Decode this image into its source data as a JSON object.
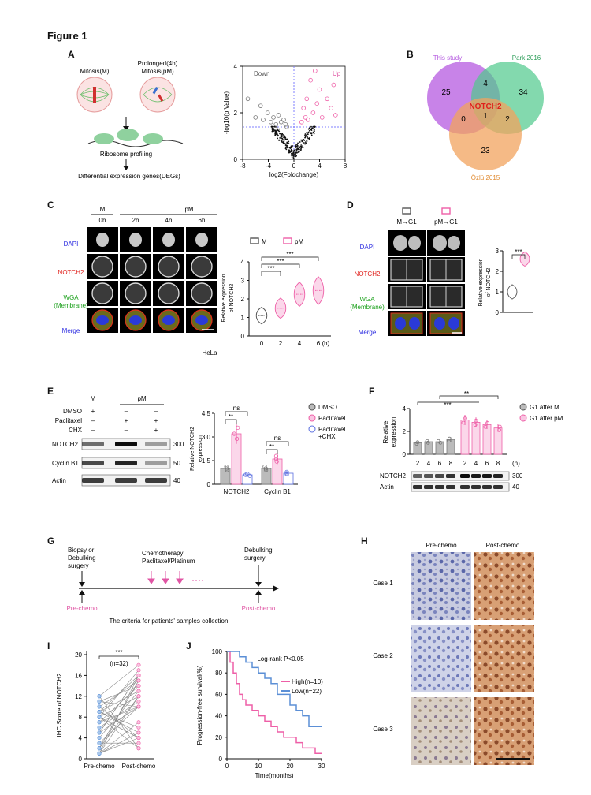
{
  "figure": {
    "title": "Figure 1"
  },
  "panel_labels": [
    "A",
    "B",
    "C",
    "D",
    "E",
    "F",
    "G",
    "H",
    "I",
    "J"
  ],
  "panelA": {
    "mitosis": "Mitosis(M)",
    "prolonged_1": "Prolonged(4h)",
    "prolonged_2": "Mitosis(pM)",
    "ribosome": "Ribosome profiling",
    "degs": "Differential expression genes(DEGs)",
    "volcano": {
      "down": "Down",
      "up": "Up",
      "xlabel": "log2(Foldchange)",
      "ylabel": "-log10(p Value)",
      "xticks": [
        "-8",
        "-4",
        "0",
        "4",
        "8"
      ],
      "yticks": [
        "0",
        "2",
        "4"
      ]
    }
  },
  "panelB": {
    "sets": [
      "This study",
      "Park,2016",
      "Özlü,2015"
    ],
    "counts": {
      "this_only": "25",
      "park_only": "34",
      "ozlu_only": "23",
      "this_park": "4",
      "this_ozlu": "0",
      "park_ozlu": "2",
      "all": "1"
    },
    "center": "NOTCH2",
    "colors": {
      "this": "#b55ae0",
      "park": "#4ec98c",
      "ozlu": "#f2a35e",
      "center_text": "#e0201b"
    }
  },
  "panelC": {
    "groups": [
      "M",
      "pM"
    ],
    "times": [
      "0h",
      "2h",
      "4h",
      "6h"
    ],
    "rows": [
      "DAPI",
      "NOTCH2",
      "WGA",
      "(Membrane)",
      "Merge"
    ],
    "cell": "HeLa",
    "legend": [
      "M",
      "pM"
    ],
    "ylabel_1": "Relative expression",
    "ylabel_2": "of NOTCH2",
    "xticks": [
      "0",
      "2",
      "4",
      "6 (h)"
    ],
    "yticks": [
      "0",
      "1",
      "2",
      "3",
      "4"
    ],
    "sig": [
      "***",
      "***",
      "***"
    ]
  },
  "panelD": {
    "cond": [
      "M→G1",
      "pM→G1"
    ],
    "rows": [
      "DAPI",
      "NOTCH2",
      "WGA",
      "(Membrane)",
      "Merge"
    ],
    "ylabel_1": "Relative expression",
    "ylabel_2": "of NOTCH2",
    "yticks": [
      "0",
      "1",
      "2",
      "3"
    ],
    "sig": "***"
  },
  "panelE": {
    "top": [
      "M",
      "pM"
    ],
    "treat": [
      "DMSO",
      "Paclitaxel",
      "CHX"
    ],
    "marks": [
      [
        "+",
        "–",
        "–"
      ],
      [
        "–",
        "+",
        "+"
      ],
      [
        "–",
        "–",
        "+"
      ]
    ],
    "blots": [
      "NOTCH2",
      "Cyclin B1",
      "Actin"
    ],
    "mw": [
      "300",
      "50",
      "40"
    ],
    "legend": [
      "DMSO",
      "Paclitaxel",
      "Paclitaxel",
      "+CHX"
    ],
    "ylabel_1": "Relative NOTCH2",
    "ylabel_2": "expression",
    "groups": [
      "NOTCH2",
      "Cyclin B1"
    ],
    "yticks": [
      "0",
      "1.5",
      "3.0",
      "4.5"
    ],
    "sig": [
      "**",
      "ns",
      "**",
      "ns"
    ]
  },
  "panelF": {
    "legend": [
      "G1 after M",
      "G1 after pM"
    ],
    "ylabel_1": "Relative",
    "ylabel_2": "expression",
    "yticks": [
      "0",
      "2",
      "4"
    ],
    "times": [
      "2",
      "4",
      "6",
      "8",
      "2",
      "4",
      "6",
      "8"
    ],
    "unit": "(h)",
    "sig": [
      "***",
      "**"
    ],
    "blots": [
      "NOTCH2",
      "Actin"
    ],
    "mw": [
      "300",
      "40"
    ]
  },
  "panelG": {
    "biopsy": [
      "Biopsy or",
      "Debulking",
      "surgery"
    ],
    "chemo": [
      "Chemotherapy:",
      "Paclitaxel/Platinum"
    ],
    "debulk": [
      "Debulking",
      "surgery"
    ],
    "pre": "Pre-chemo",
    "post": "Post-chemo",
    "criteria": "The criteria for patients' samples collection"
  },
  "panelH": {
    "cols": [
      "Pre-chemo",
      "Post-chemo"
    ],
    "rows": [
      "Case 1",
      "Case 2",
      "Case 3"
    ]
  },
  "panelI": {
    "ylabel": "IHC Score of NOTCH2",
    "sig": "***",
    "n": "(n=32)",
    "xticks": [
      "Pre-chemo",
      "Post-chemo"
    ],
    "yticks": [
      "0",
      "4",
      "8",
      "12",
      "16",
      "20"
    ]
  },
  "panelJ": {
    "ylabel": "Progression-free survival(%)",
    "xlabel": "Time(months)",
    "title": "Log-rank P<0.05",
    "legend": [
      "High(n=10)",
      "Low(n=22)"
    ],
    "xticks": [
      "0",
      "10",
      "20",
      "30"
    ],
    "yticks": [
      "0",
      "20",
      "40",
      "60",
      "80",
      "100"
    ],
    "colors": {
      "high": "#ee5fa7",
      "low": "#5b8fd6"
    }
  },
  "chart_data": [
    {
      "type": "scatter",
      "panel": "A",
      "xlabel": "log2(Foldchange)",
      "ylabel": "-log10(p Value)",
      "xlim": [
        -8,
        8
      ],
      "ylim": [
        0,
        4
      ],
      "series": [
        {
          "name": "Down",
          "x": [
            -7.2,
            -6.0,
            -5.2,
            -4.8,
            -4.1,
            -3.6,
            -3.2,
            -2.8,
            -2.4,
            -2.0,
            -1.6,
            -1.3,
            -1.1
          ],
          "y": [
            2.6,
            1.8,
            2.3,
            1.7,
            2.0,
            1.6,
            1.8,
            1.5,
            1.9,
            1.6,
            1.7,
            1.5,
            1.4
          ]
        },
        {
          "name": "Up",
          "x": [
            1.2,
            1.5,
            1.8,
            2.0,
            2.2,
            2.6,
            3.0,
            3.3,
            3.6,
            4.0,
            4.4,
            5.2,
            5.8,
            6.2,
            6.5
          ],
          "y": [
            1.6,
            2.2,
            1.8,
            2.6,
            1.7,
            3.4,
            2.0,
            3.8,
            2.4,
            3.0,
            1.8,
            2.6,
            2.2,
            3.2,
            1.9
          ]
        }
      ]
    },
    {
      "type": "bar",
      "panel": "E",
      "categories": [
        "NOTCH2",
        "Cyclin B1"
      ],
      "series": [
        {
          "name": "DMSO",
          "values": [
            1.0,
            1.0
          ]
        },
        {
          "name": "Paclitaxel",
          "values": [
            3.2,
            1.6
          ]
        },
        {
          "name": "Paclitaxel +CHX",
          "values": [
            0.6,
            0.7
          ]
        }
      ],
      "ylim": [
        0,
        4.5
      ]
    },
    {
      "type": "bar",
      "panel": "F",
      "categories": [
        "2",
        "4",
        "6",
        "8",
        "2",
        "4",
        "6",
        "8"
      ],
      "series": [
        {
          "name": "G1 after M",
          "values": [
            1.0,
            1.1,
            1.1,
            1.3,
            null,
            null,
            null,
            null
          ]
        },
        {
          "name": "G1 after pM",
          "values": [
            null,
            null,
            null,
            null,
            3.0,
            2.8,
            2.6,
            2.3
          ]
        }
      ],
      "ylim": [
        0,
        4
      ]
    },
    {
      "type": "line",
      "panel": "J",
      "xlabel": "Time(months)",
      "ylabel": "Progression-free survival(%)",
      "xlim": [
        0,
        30
      ],
      "ylim": [
        0,
        100
      ],
      "series": [
        {
          "name": "High(n=10)",
          "x": [
            0,
            1,
            2,
            3,
            4,
            5,
            6,
            8,
            10,
            12,
            14,
            16,
            18,
            20,
            22,
            24,
            26,
            28,
            30
          ],
          "y": [
            100,
            90,
            80,
            70,
            60,
            55,
            50,
            45,
            40,
            35,
            30,
            25,
            20,
            20,
            15,
            10,
            10,
            5,
            5
          ]
        },
        {
          "name": "Low(n=22)",
          "x": [
            0,
            2,
            4,
            6,
            8,
            10,
            12,
            14,
            16,
            18,
            20,
            22,
            24,
            26,
            28,
            30
          ],
          "y": [
            100,
            100,
            95,
            90,
            85,
            80,
            75,
            70,
            60,
            60,
            50,
            45,
            40,
            30,
            30,
            30
          ]
        }
      ]
    }
  ]
}
